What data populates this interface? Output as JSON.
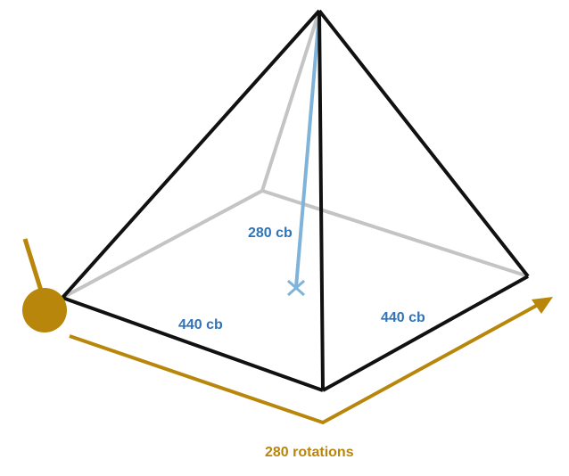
{
  "colors": {
    "edge_front": "#111111",
    "edge_hidden": "#c4c4c4",
    "height_line": "#7fb3d9",
    "dimension_text": "#2f74b8",
    "rotation": "#b8860b"
  },
  "labels": {
    "height": "280 cb",
    "base_left": "440 cb",
    "base_right": "440 cb",
    "rotations": "280 rotations"
  },
  "icons": {
    "wheel": "wheel-with-handle-icon",
    "arrow": "arrow-right-icon"
  }
}
